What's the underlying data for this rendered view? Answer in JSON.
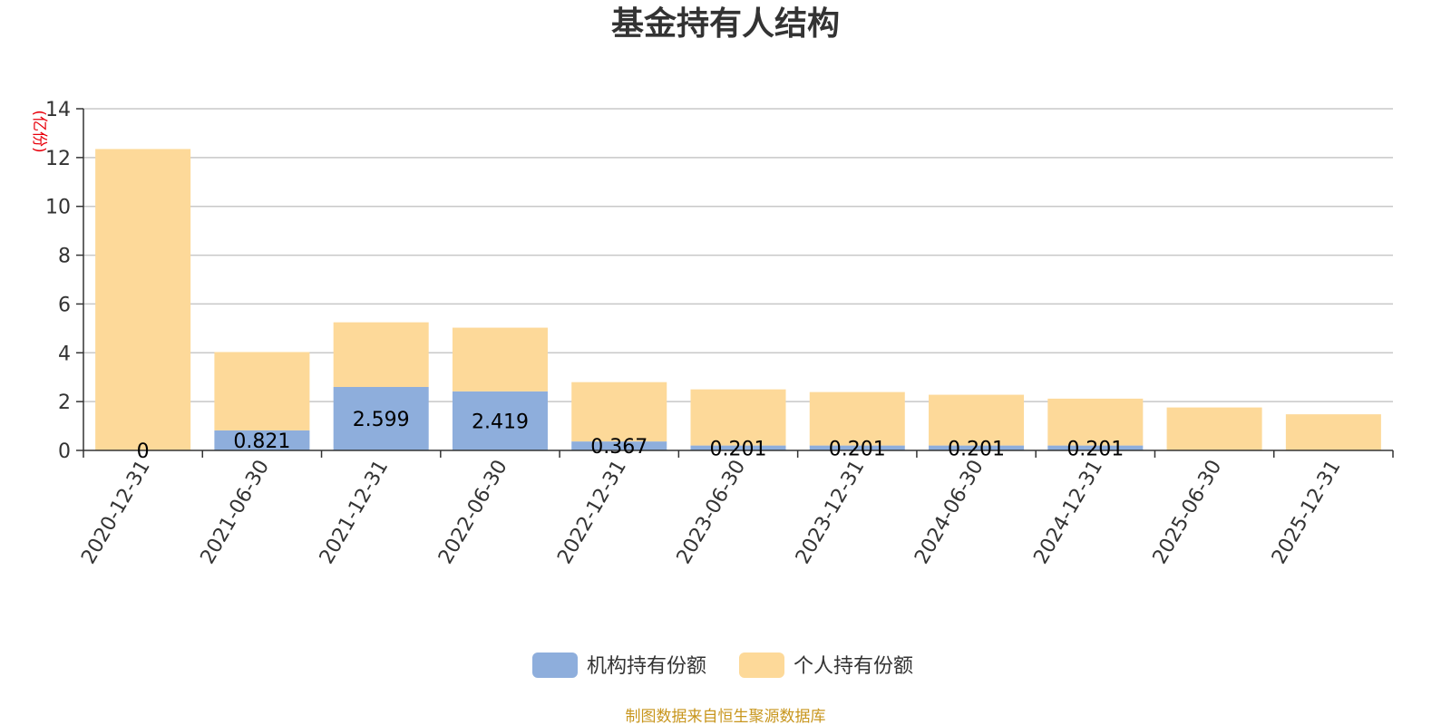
{
  "chart_data": {
    "type": "bar",
    "stacked": true,
    "title": "基金持有人结构",
    "y_unit": "(亿份)",
    "ylim": [
      0,
      14
    ],
    "y_ticks": [
      0,
      2,
      4,
      6,
      8,
      10,
      12,
      14
    ],
    "grid": true,
    "categories": [
      "2020-12-31",
      "2021-06-30",
      "2021-12-31",
      "2022-06-30",
      "2022-12-31",
      "2023-06-30",
      "2023-12-31",
      "2024-06-30",
      "2024-12-31",
      "2025-06-30",
      "2025-12-31"
    ],
    "series": [
      {
        "name": "机构持有份额",
        "color": "#8eaedc",
        "values": [
          0,
          0.821,
          2.599,
          2.419,
          0.367,
          0.201,
          0.201,
          0.201,
          0.201,
          0,
          0
        ],
        "labels": [
          "0",
          "0.821",
          "2.599",
          "2.419",
          "0.367",
          "0.201",
          "0.201",
          "0.201",
          "0.201",
          "",
          ""
        ]
      },
      {
        "name": "个人持有份额",
        "color": "#fdd999",
        "values": [
          12.35,
          3.21,
          2.65,
          2.61,
          2.43,
          2.3,
          2.19,
          2.08,
          1.92,
          1.76,
          1.48
        ]
      }
    ],
    "legend_position": "bottom"
  },
  "source": "制图数据来自恒生聚源数据库"
}
